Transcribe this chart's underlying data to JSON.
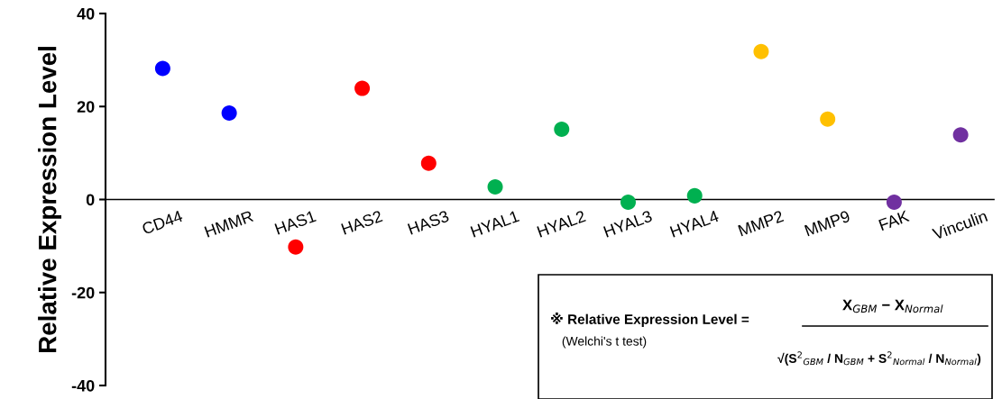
{
  "chart_data": {
    "type": "scatter",
    "ylabel": "Relative Expression Level",
    "categories": [
      "CD44",
      "HMMR",
      "HAS1",
      "HAS2",
      "HAS3",
      "HYAL1",
      "HYAL2",
      "HYAL3",
      "HYAL4",
      "MMP2",
      "MMP9",
      "FAK",
      "Vinculin"
    ],
    "values": [
      28.2,
      18.6,
      -10.2,
      23.9,
      7.8,
      2.7,
      15.1,
      -0.6,
      0.8,
      31.8,
      17.3,
      -0.6,
      13.9
    ],
    "colors": [
      "#0000ff",
      "#0000ff",
      "#ff0000",
      "#ff0000",
      "#ff0000",
      "#00b050",
      "#00b050",
      "#00b050",
      "#00b050",
      "#ffc000",
      "#ffc000",
      "#7030a0",
      "#7030a0"
    ],
    "ylim": [
      -40,
      40
    ],
    "yticks": [
      -40,
      -20,
      0,
      20,
      40
    ],
    "marker": "circle",
    "grid": false,
    "annotations": [
      "※ Relative Expression Level =",
      "(Welchi's t test)",
      "X$_{GBM}$ − X$_{Normal}$",
      "√(S$^{2}$$_{GBM}$ / N$_{GBM}$ + S$^{2}$$_{Normal}$ / N$_{Normal}$)"
    ]
  }
}
